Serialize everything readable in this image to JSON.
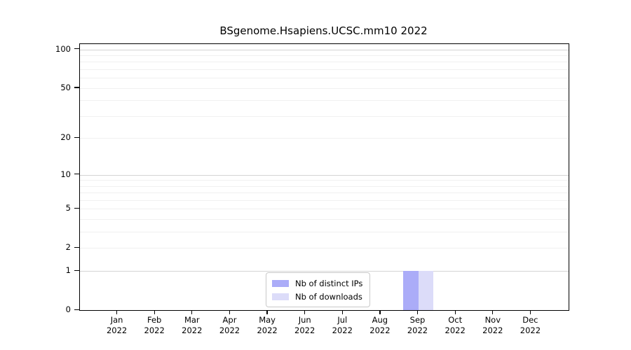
{
  "chart_data": {
    "type": "bar",
    "title": "BSgenome.Hsapiens.UCSC.mm10 2022",
    "categories": [
      "Jan 2022",
      "Feb 2022",
      "Mar 2022",
      "Apr 2022",
      "May 2022",
      "Jun 2022",
      "Jul 2022",
      "Aug 2022",
      "Sep 2022",
      "Oct 2022",
      "Nov 2022",
      "Dec 2022"
    ],
    "series": [
      {
        "name": "Nb of distinct IPs",
        "color": "#abacf8",
        "values": [
          0,
          0,
          0,
          0,
          0,
          0,
          0,
          0,
          1,
          0,
          0,
          0
        ]
      },
      {
        "name": "Nb of downloads",
        "color": "#dcdcf9",
        "values": [
          0,
          0,
          0,
          0,
          0,
          0,
          0,
          0,
          1,
          0,
          0,
          0
        ]
      }
    ],
    "xlabel": "",
    "ylabel": "",
    "yscale": "log1p",
    "ylim": [
      0,
      110
    ],
    "ytick_labels": [
      100,
      50,
      20,
      10,
      5,
      2,
      1,
      0
    ],
    "grid": {
      "major_lines": [
        1,
        10,
        100
      ],
      "minor_lines": [
        2,
        3,
        4,
        5,
        6,
        7,
        8,
        9,
        20,
        30,
        40,
        50,
        60,
        70,
        80,
        90
      ]
    },
    "legend_position": "bottom-center",
    "colors": {
      "axis": "#000000",
      "grid_major": "#d4d4d4",
      "grid_minor": "#f0f0f0",
      "background": "#ffffff"
    }
  }
}
